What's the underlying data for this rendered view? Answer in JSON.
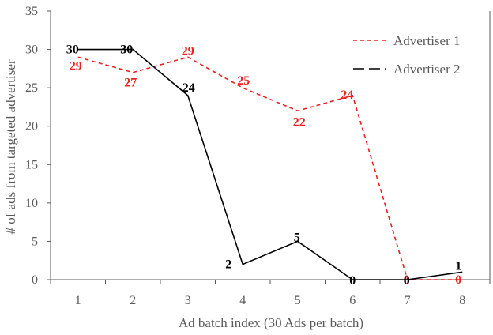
{
  "chart_data": {
    "type": "line",
    "title": "",
    "xlabel": "Ad batch index (30 Ads per batch)",
    "ylabel": "# of ads from targeted advertiser",
    "x": [
      1,
      2,
      3,
      4,
      5,
      6,
      7,
      8
    ],
    "x_tick_labels": [
      "1",
      "2",
      "3",
      "4",
      "5",
      "6",
      "7",
      "8"
    ],
    "ylim": [
      0,
      35
    ],
    "y_ticks": [
      0,
      5,
      10,
      15,
      20,
      25,
      30,
      35
    ],
    "y_tick_labels": [
      "0",
      "5",
      "10",
      "15",
      "20",
      "25",
      "30",
      "35"
    ],
    "grid": false,
    "legend_position": "top-right",
    "series": [
      {
        "name": "Advertiser 1",
        "values": [
          29,
          27,
          29,
          25,
          22,
          24,
          0,
          0
        ],
        "data_labels": [
          "29",
          "27",
          "29",
          "25",
          "22",
          "24",
          "0",
          "0"
        ],
        "color": "#e8221f",
        "line_style": "dashed",
        "label_color": "#e8221f"
      },
      {
        "name": "Advertiser 2",
        "values": [
          30,
          30,
          24,
          2,
          5,
          0,
          0,
          1
        ],
        "data_labels": [
          "30",
          "30",
          "24",
          "2",
          "5",
          "0",
          "0",
          "1"
        ],
        "color": "#000000",
        "line_style": "solid",
        "label_color": "#000000"
      }
    ]
  }
}
